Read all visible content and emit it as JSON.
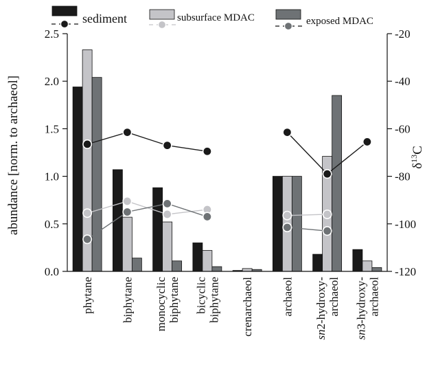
{
  "chart_data": {
    "type": "bar",
    "categories": [
      {
        "lines": [
          "phytane"
        ]
      },
      {
        "lines": [
          "biphytane"
        ]
      },
      {
        "lines": [
          "monocyclic",
          "biphytane"
        ]
      },
      {
        "lines": [
          "bicyclic",
          "biphytane"
        ]
      },
      {
        "lines": [
          "crenarchaeol"
        ]
      },
      {
        "lines": [
          "archaeol"
        ]
      },
      {
        "lines": [
          "-hydroxy-",
          "archaeol"
        ],
        "prefix": "sn2"
      },
      {
        "lines": [
          "-hydroxy-",
          "archaeol"
        ],
        "prefix": "sn3"
      }
    ],
    "series": [
      {
        "name": "sediment",
        "color": "#1a1a1a",
        "values": [
          1.94,
          1.07,
          0.88,
          0.3,
          0.01,
          1.0,
          0.18,
          0.23
        ]
      },
      {
        "name": "subsurface MDAC",
        "color": "#c4c4c8",
        "values": [
          2.33,
          0.57,
          0.52,
          0.22,
          0.03,
          1.0,
          1.21,
          0.11
        ]
      },
      {
        "name": "exposed MDAC",
        "color": "#6e7275",
        "values": [
          2.04,
          0.14,
          0.11,
          0.05,
          0.02,
          1.0,
          1.85,
          0.04
        ]
      }
    ],
    "isotope_series": [
      {
        "series": "sediment",
        "color": "#1a1a1a",
        "points": [
          [
            0,
            -66.5
          ],
          [
            1,
            -61.5
          ],
          [
            2,
            -67
          ],
          [
            3,
            -69.5
          ]
        ],
        "extra_points": [
          [
            5,
            -61.5
          ],
          [
            6,
            -79
          ],
          [
            7,
            -65.5
          ]
        ],
        "links": [
          [
            5,
            6
          ],
          [
            6,
            7
          ]
        ]
      },
      {
        "series": "subsurface MDAC",
        "color": "#c4c4c8",
        "points": [
          [
            0,
            -95.5
          ],
          [
            1,
            -90.5
          ],
          [
            2,
            -96
          ],
          [
            3,
            -94
          ]
        ],
        "extra_points": [
          [
            5,
            -96.5
          ],
          [
            6,
            -96
          ]
        ],
        "links": [
          [
            5,
            6
          ]
        ]
      },
      {
        "series": "exposed MDAC",
        "color": "#6e7275",
        "points": [
          [
            0,
            -106.5
          ],
          [
            1,
            -95
          ],
          [
            2,
            -91.5
          ],
          [
            3,
            -97
          ]
        ],
        "extra_points": [
          [
            5,
            -101.5
          ],
          [
            6,
            -103
          ]
        ],
        "links": [
          [
            5,
            6
          ]
        ]
      }
    ],
    "y_left": {
      "label": "abundance [norm. to archaeol]",
      "min": 0,
      "max": 2.5,
      "ticks": [
        "0.0",
        "0.5",
        "1.0",
        "1.5",
        "2.0",
        "2.5"
      ]
    },
    "y_right": {
      "label_main": "δ",
      "label_sup": "13",
      "label_tail": "C",
      "min": -120,
      "max": -20,
      "ticks": [
        "-20",
        "-40",
        "-60",
        "-80",
        "-100",
        "-120"
      ]
    },
    "legend": {
      "placement": "top"
    }
  }
}
